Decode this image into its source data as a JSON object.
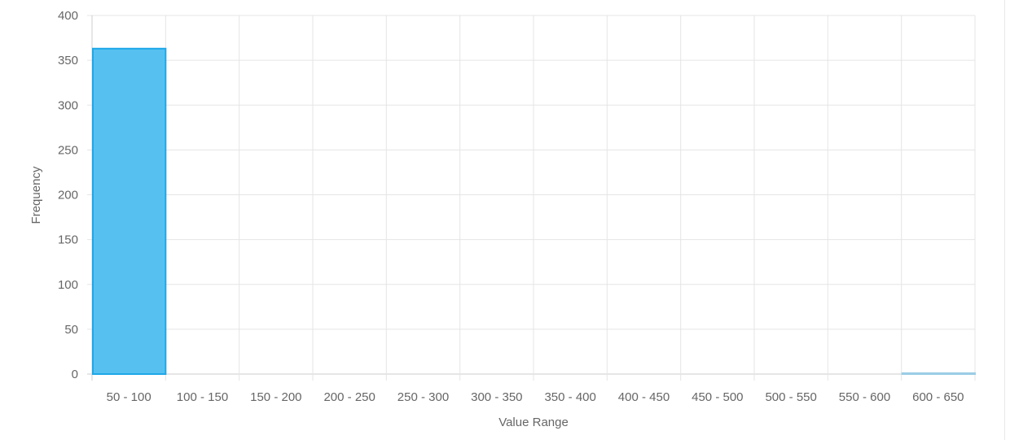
{
  "chart_data": {
    "type": "bar",
    "title": "",
    "xlabel": "Value Range",
    "ylabel": "Frequency",
    "categories": [
      "50 - 100",
      "100 - 150",
      "150 - 200",
      "200 - 250",
      "250 - 300",
      "300 - 350",
      "350 - 400",
      "400 - 450",
      "450 - 500",
      "500 - 550",
      "550 - 600",
      "600 - 650"
    ],
    "values": [
      363,
      0,
      0,
      0,
      0,
      0,
      0,
      0,
      0,
      0,
      0,
      1
    ],
    "ylim": [
      0,
      400
    ],
    "yticks": [
      0,
      50,
      100,
      150,
      200,
      250,
      300,
      350,
      400
    ],
    "grid": true,
    "colors": {
      "bar_fill": "#56c1f0",
      "bar_border": "#1ea7e8",
      "last_bar": "#9ccde6",
      "grid": "#e5e5e5"
    }
  }
}
